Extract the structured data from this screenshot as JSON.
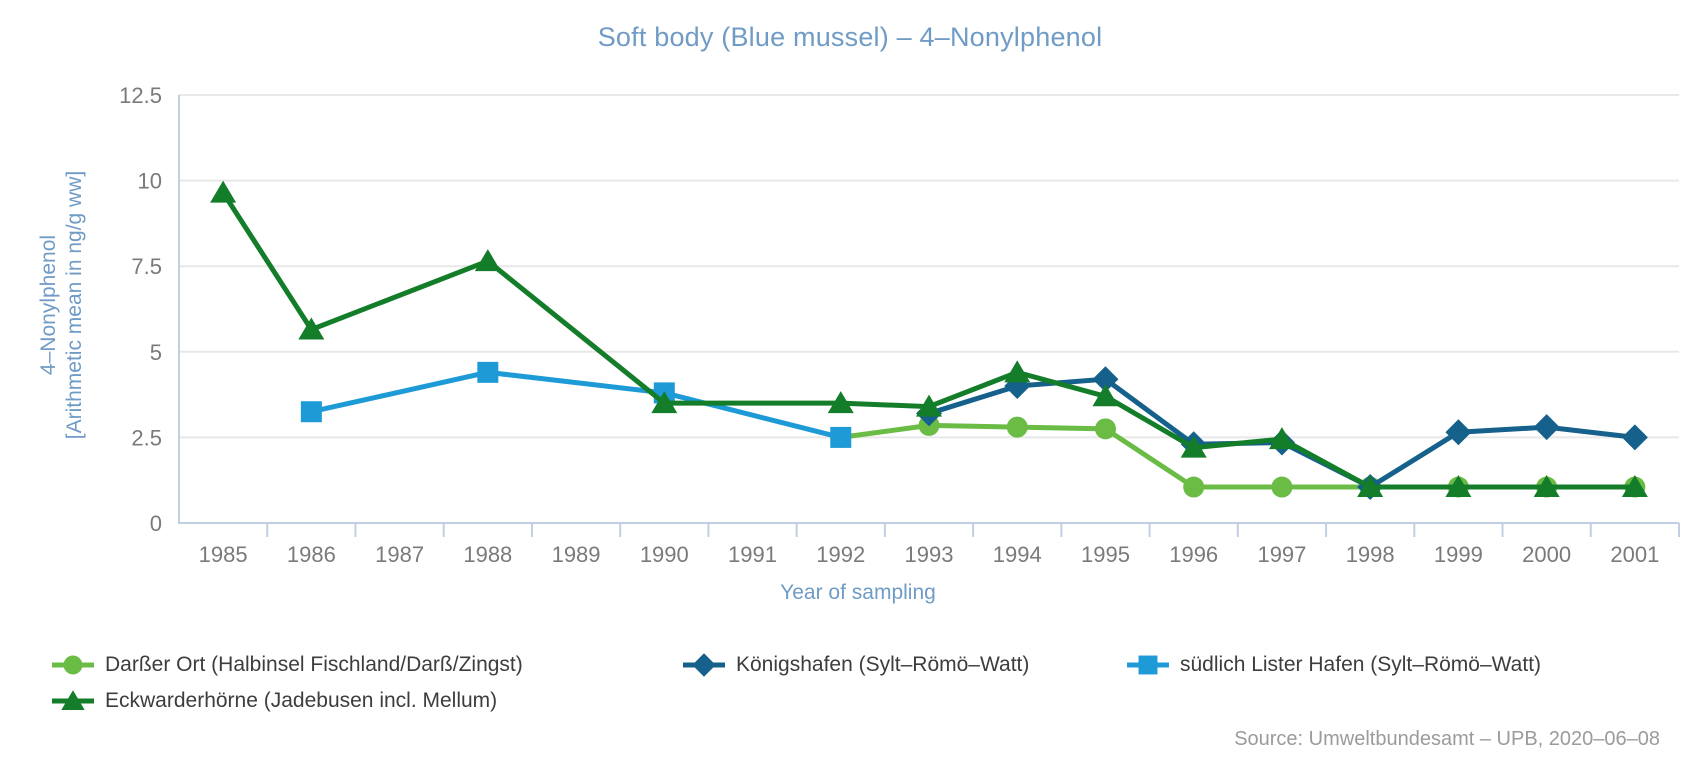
{
  "palette": {
    "title_text": "#6f9bc6",
    "axis_line": "#c2cfe2",
    "grid_line": "#e8e8e8",
    "tick_label_text": "#7a7a7a",
    "legend_text": "#3d3d3d",
    "source_text": "#9b9b9b",
    "background": "#ffffff"
  },
  "chart_data": {
    "type": "line",
    "title": "Soft body (Blue mussel) – 4–Nonylphenol",
    "xlabel": "Year of sampling",
    "ylabel_line1": "4–Nonylphenol",
    "ylabel_line2": "[Arithmetic mean in ng/g ww]",
    "ylabel": "4–Nonylphenol [Arithmetic mean in ng/g ww]",
    "x_categories": [
      "1985",
      "1986",
      "1987",
      "1988",
      "1989",
      "1990",
      "1991",
      "1992",
      "1993",
      "1994",
      "1995",
      "1996",
      "1997",
      "1998",
      "1999",
      "2000",
      "2001"
    ],
    "y_ticks": [
      "0",
      "2.5",
      "5",
      "7.5",
      "10",
      "12.5"
    ],
    "ylim": [
      0,
      12.5
    ],
    "grid": "horizontal",
    "legend_position": "bottom",
    "series": [
      {
        "name": "Darßer Ort (Halbinsel Fischland/Darß/Zingst)",
        "marker": "circle",
        "color": "#6abc45",
        "points": {
          "1992": 2.5,
          "1993": 2.85,
          "1994": 2.8,
          "1995": 2.75,
          "1996": 1.05,
          "1997": 1.05,
          "1998": 1.05,
          "1999": 1.05,
          "2000": 1.05,
          "2001": 1.05
        }
      },
      {
        "name": "Königshafen (Sylt–Römö–Watt)",
        "marker": "diamond",
        "color": "#16618b",
        "points": {
          "1993": 3.2,
          "1994": 4.0,
          "1995": 4.2,
          "1996": 2.3,
          "1997": 2.35,
          "1998": 1.05,
          "1999": 2.65,
          "2000": 2.8,
          "2001": 2.5
        }
      },
      {
        "name": "südlich Lister Hafen (Sylt–Römö–Watt)",
        "marker": "square",
        "color": "#1e9bd7",
        "points": {
          "1986": 3.25,
          "1988": 4.4,
          "1990": 3.8,
          "1992": 2.5
        }
      },
      {
        "name": "Eckwarderhörne (Jadebusen incl. Mellum)",
        "marker": "triangle",
        "color": "#137d2a",
        "points": {
          "1985": 9.65,
          "1986": 5.65,
          "1988": 7.65,
          "1990": 3.5,
          "1992": 3.5,
          "1993": 3.4,
          "1994": 4.4,
          "1995": 3.7,
          "1996": 2.2,
          "1997": 2.45,
          "1998": 1.05,
          "1999": 1.05,
          "2000": 1.05,
          "2001": 1.05
        }
      }
    ],
    "source": "Source: Umweltbundesamt – UPB, 2020–06–08"
  }
}
